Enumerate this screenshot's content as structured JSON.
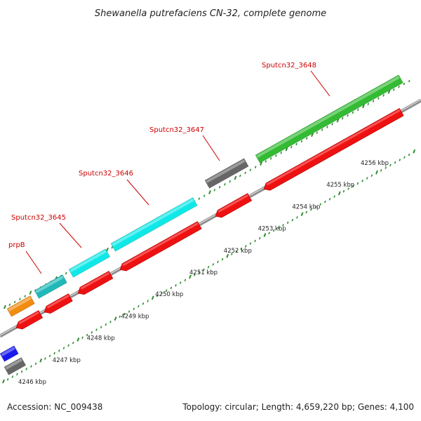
{
  "title": "Shewanella putrefaciens CN-32, complete genome",
  "footer": {
    "accession": "Accession: NC_009438",
    "summary": "Topology: circular; Length: 4,659,220 bp; Genes: 4,100"
  },
  "colors": {
    "backbone": "#9a9a9a",
    "cds_reverse": "#ee1111",
    "tick": "#2e8b2e",
    "label": "#cc0000"
  },
  "kbp_labels": [
    "4246 kbp",
    "4247 kbp",
    "4248 kbp",
    "4249 kbp",
    "4250 kbp",
    "4251 kbp",
    "4252 kbp",
    "4253 kbp",
    "4254 kbp",
    "4255 kbp",
    "4256 kbp"
  ],
  "gene_labels": [
    "prpB",
    "Sputcn32_3645",
    "Sputcn32_3646",
    "Sputcn32_3647",
    "Sputcn32_3648"
  ],
  "genes_outer": [
    {
      "name": "blue-gene",
      "color": "#1a1aee"
    },
    {
      "name": "gray-gene-bottom",
      "color": "#666666"
    },
    {
      "name": "orange-gene",
      "color": "#f08c10"
    },
    {
      "name": "prpB-gene",
      "color": "#20b8b8"
    },
    {
      "name": "Sputcn32_3645-gene",
      "color": "#10e8e8"
    },
    {
      "name": "Sputcn32_3646-gene",
      "color": "#10e8e8"
    },
    {
      "name": "Sputcn32_3647-gene",
      "color": "#666666"
    },
    {
      "name": "Sputcn32_3648-gene",
      "color": "#33bb33"
    }
  ]
}
